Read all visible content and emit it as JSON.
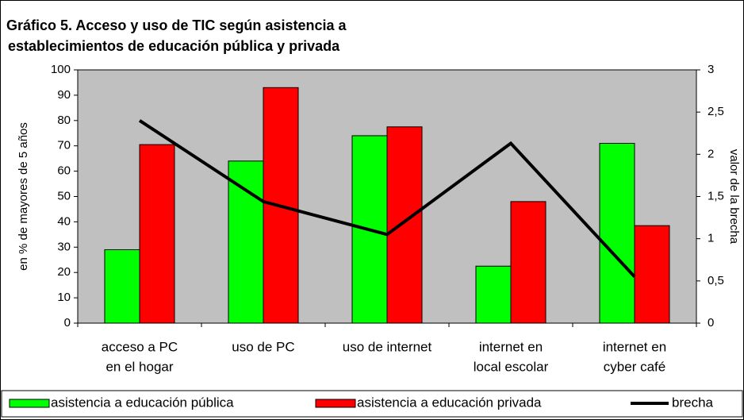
{
  "chart_data": {
    "type": "bar",
    "title": [
      "Gráfico 5. Acceso y uso de TIC según asistencia a",
      "establecimientos de educación pública y privada"
    ],
    "categories": [
      [
        "acceso a PC",
        "en el hogar"
      ],
      [
        "uso de PC"
      ],
      [
        "uso de internet"
      ],
      [
        "internet en",
        "local escolar"
      ],
      [
        "internet en",
        "cyber café"
      ]
    ],
    "series": [
      {
        "name": "asistencia a educación pública",
        "color": "#00ff00",
        "type": "bar",
        "values": [
          29,
          64,
          74,
          22.5,
          71
        ]
      },
      {
        "name": "asistencia a educación privada",
        "color": "#ff0000",
        "type": "bar",
        "values": [
          70.5,
          93,
          77.5,
          48,
          38.5
        ]
      },
      {
        "name": "brecha",
        "color": "#000000",
        "type": "line",
        "axis": "y2",
        "values": [
          2.4,
          1.44,
          1.05,
          2.13,
          0.55
        ]
      }
    ],
    "ylabel": "en % de mayores de 5 años",
    "y2label": "valor de la brecha",
    "ylim": [
      0,
      100
    ],
    "yticks": [
      0,
      10,
      20,
      30,
      40,
      50,
      60,
      70,
      80,
      90,
      100
    ],
    "y2lim": [
      0,
      3
    ],
    "y2ticks": [
      0,
      {
        "value": 0.5,
        "label": "0,5"
      },
      1,
      {
        "value": 1.5,
        "label": "1,5"
      },
      2,
      {
        "value": 2.5,
        "label": "2,5"
      },
      3
    ],
    "plot_background": "#c0c0c0",
    "legend": "bottom"
  }
}
